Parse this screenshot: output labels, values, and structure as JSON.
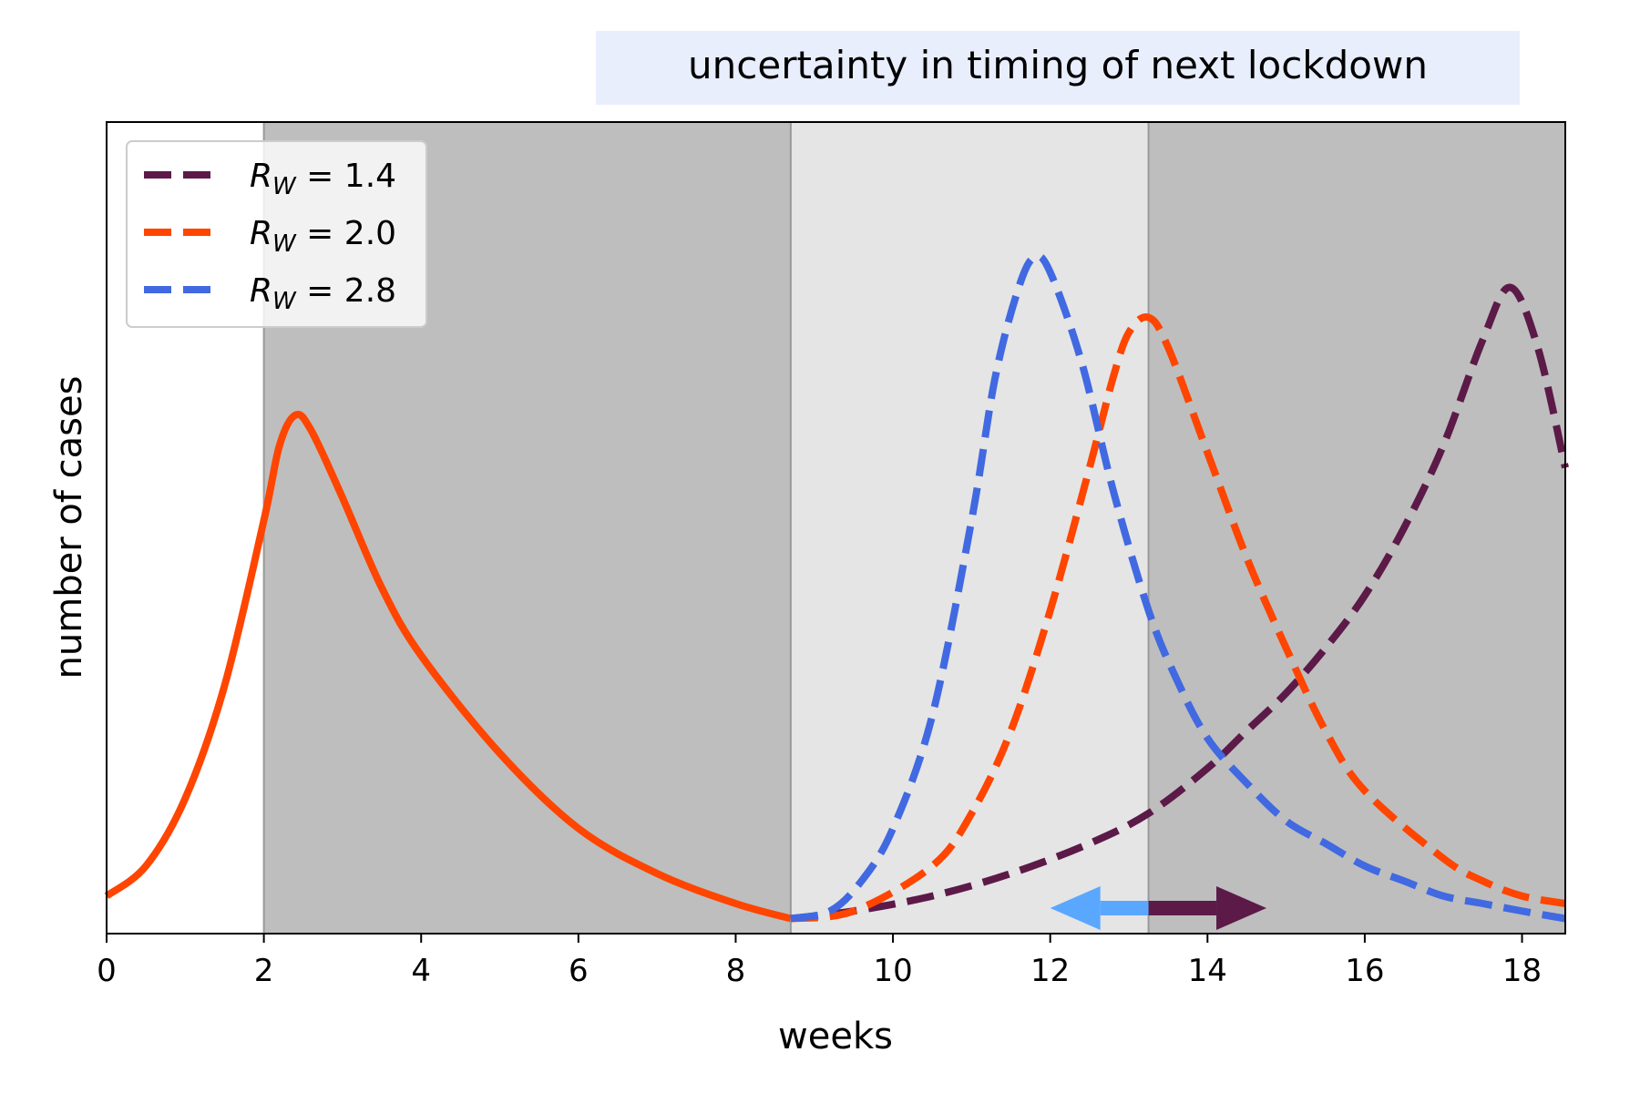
{
  "chart_data": {
    "type": "line",
    "title": "uncertainty in timing of next lockdown",
    "xlabel": "weeks",
    "ylabel": "number of cases",
    "xlim": [
      0,
      18.55
    ],
    "ylim": [
      0,
      1
    ],
    "xticks": [
      "0",
      "2",
      "4",
      "6",
      "8",
      "10",
      "12",
      "14",
      "16",
      "18"
    ],
    "yticks_shown": false,
    "legend_position": "top-left",
    "shaded_regions": [
      {
        "x": [
          2.0,
          8.7
        ],
        "shade": "dark",
        "color": "#bebebe"
      },
      {
        "x": [
          8.7,
          13.25
        ],
        "shade": "light",
        "color": "#e5e5e5"
      },
      {
        "x": [
          13.25,
          18.55
        ],
        "shade": "dark",
        "color": "#bebebe"
      }
    ],
    "vertical_lines": [
      2.0,
      8.7,
      13.25
    ],
    "series": [
      {
        "name": "R_W = 1.4",
        "legend_label": "= 1.4",
        "color": "#5c1a48",
        "style": "dashed",
        "x": [
          8.7,
          9.5,
          10.5,
          11.5,
          12.5,
          13.25,
          14.0,
          14.5,
          15.0,
          15.5,
          16.0,
          16.5,
          17.0,
          17.5,
          17.85,
          18.2,
          18.55
        ],
        "y": [
          0.02,
          0.03,
          0.05,
          0.08,
          0.12,
          0.16,
          0.22,
          0.27,
          0.32,
          0.38,
          0.45,
          0.54,
          0.65,
          0.79,
          0.86,
          0.78,
          0.62
        ]
      },
      {
        "name": "R_W = 2.0",
        "legend_label": "= 2.0",
        "color": "#ff4500",
        "style": "solid-then-dashed",
        "x": [
          0.0,
          0.5,
          1.0,
          1.5,
          2.0,
          2.2,
          2.4,
          2.6,
          3.0,
          3.5,
          4.0,
          5.0,
          6.0,
          7.0,
          8.0,
          8.7,
          9.5,
          10.5,
          11.0,
          11.5,
          12.0,
          12.5,
          12.8,
          13.0,
          13.25,
          13.5,
          14.0,
          14.5,
          15.0,
          15.5,
          16.0,
          17.0,
          17.5,
          18.0,
          18.55
        ],
        "y": [
          0.05,
          0.09,
          0.18,
          0.33,
          0.55,
          0.65,
          0.69,
          0.67,
          0.58,
          0.46,
          0.37,
          0.24,
          0.14,
          0.08,
          0.04,
          0.02,
          0.03,
          0.09,
          0.16,
          0.27,
          0.43,
          0.62,
          0.74,
          0.8,
          0.82,
          0.78,
          0.64,
          0.5,
          0.38,
          0.27,
          0.19,
          0.1,
          0.07,
          0.05,
          0.04
        ]
      },
      {
        "name": "R_W = 2.8",
        "legend_label": "= 2.8",
        "color": "#4169e1",
        "style": "dashed",
        "x": [
          8.7,
          9.2,
          9.6,
          10.0,
          10.5,
          11.0,
          11.3,
          11.6,
          11.8,
          12.0,
          12.4,
          12.8,
          13.25,
          13.6,
          14.0,
          14.5,
          15.0,
          15.5,
          16.0,
          16.5,
          17.0,
          17.5,
          18.0,
          18.55
        ],
        "y": [
          0.02,
          0.03,
          0.07,
          0.14,
          0.29,
          0.55,
          0.74,
          0.86,
          0.9,
          0.88,
          0.76,
          0.59,
          0.43,
          0.34,
          0.26,
          0.2,
          0.15,
          0.12,
          0.09,
          0.07,
          0.05,
          0.04,
          0.03,
          0.02
        ]
      }
    ],
    "arrows": [
      {
        "from_x": 13.25,
        "to_x": 12.0,
        "color": "#5aa7ff"
      },
      {
        "from_x": 13.25,
        "to_x": 14.75,
        "color": "#5c1a48"
      }
    ]
  }
}
